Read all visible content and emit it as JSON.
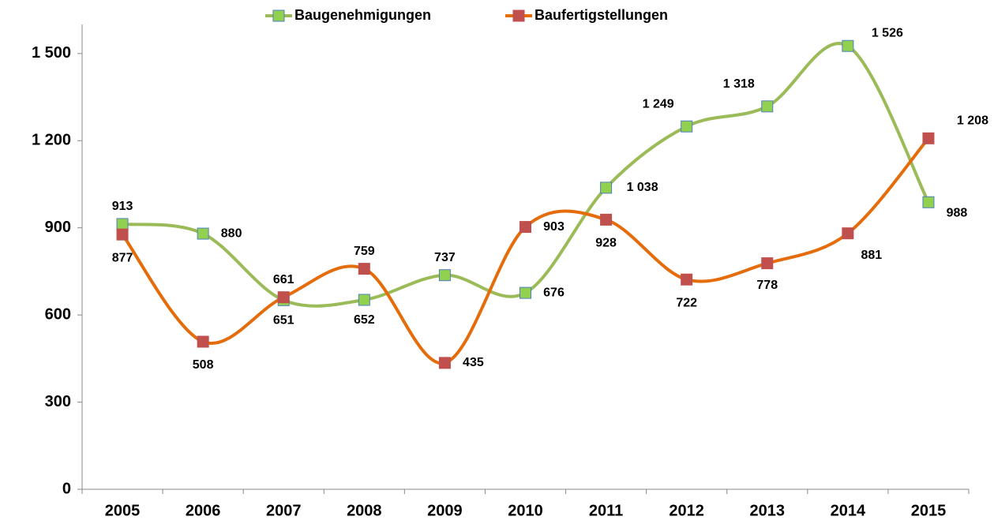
{
  "chart_data": {
    "type": "line",
    "categories": [
      "2005",
      "2006",
      "2007",
      "2008",
      "2009",
      "2010",
      "2011",
      "2012",
      "2013",
      "2014",
      "2015"
    ],
    "series": [
      {
        "name": "Baugenehmigungen",
        "color": "#9bbb59",
        "marker_fill": "#92d050",
        "marker_edge": "#4f81bd",
        "values": [
          913,
          880,
          651,
          652,
          737,
          676,
          1038,
          1249,
          1318,
          1526,
          988
        ],
        "value_labels": [
          "913",
          "880",
          "651",
          "652",
          "737",
          "676",
          "1 038",
          "1 249",
          "1 318",
          "1 526",
          "988"
        ]
      },
      {
        "name": "Baufertigstellungen",
        "color": "#e46c0a",
        "marker_fill": "#c0504d",
        "marker_edge": "#c0504d",
        "values": [
          877,
          508,
          661,
          759,
          435,
          903,
          928,
          722,
          778,
          881,
          1208
        ],
        "value_labels": [
          "877",
          "508",
          "661",
          "759",
          "435",
          "903",
          "928",
          "722",
          "778",
          "881",
          "1 208"
        ]
      }
    ],
    "ylim": [
      0,
      1600
    ],
    "yticks": [
      0,
      300,
      600,
      900,
      {
        "value": 1200,
        "label": "1 200"
      },
      {
        "value": 1500,
        "label": "1 500"
      }
    ],
    "grid": false,
    "smooth": true,
    "legend": "top"
  }
}
